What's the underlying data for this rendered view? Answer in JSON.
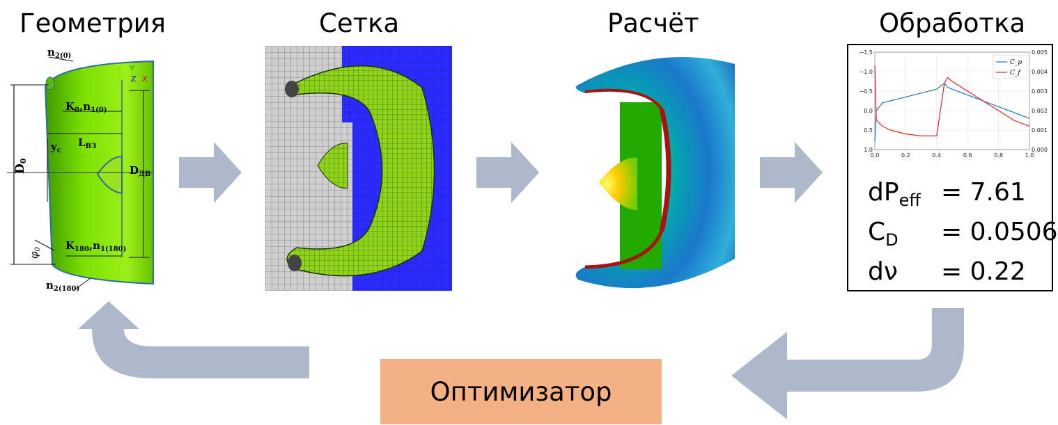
{
  "stages": [
    {
      "title": "Геометрия"
    },
    {
      "title": "Сетка"
    },
    {
      "title": "Расчёт"
    },
    {
      "title": "Обработка"
    }
  ],
  "geometry_labels": {
    "n2_0_main": "n",
    "n2_0_sub": "2(0)",
    "k0_main": "K",
    "k0_sub": "0",
    "k0_n": "n",
    "k0_nsub": "1(0)",
    "lvz_main": "L",
    "lvz_sub": "ВЗ",
    "yc_main": "y",
    "yc_sub": "c",
    "d0_main": "D",
    "d0_sub": "0",
    "ddv_main": "D",
    "ddv_sub": "ДВ",
    "phi_main": "φ",
    "phi_sub": "0",
    "k180_main": "K",
    "k180_sub": "180",
    "k180_n": "n",
    "k180_nsub": "1(180)",
    "n2_180_main": "n",
    "n2_180_sub": "2(180)",
    "axis_y": "Y",
    "axis_z": "Z",
    "axis_x": "X"
  },
  "plot": {
    "left_ticks": [
      "−1.5",
      "−1.0",
      "−0.5",
      "0.0",
      "0.5",
      "1.0"
    ],
    "right_ticks": [
      "0.005",
      "0.004",
      "0.003",
      "0.002",
      "0.001",
      "0.000"
    ],
    "x_ticks": [
      "0.0",
      "0.2",
      "0.4",
      "0.6",
      "0.8",
      "1.0"
    ],
    "legend": [
      "C_p",
      "C_f"
    ],
    "colors": {
      "cp": "#1f77b4",
      "cf": "#d62728"
    }
  },
  "chart_data": {
    "type": "line",
    "x": [
      0.0,
      0.01,
      0.05,
      0.1,
      0.2,
      0.3,
      0.4,
      0.45,
      0.47,
      0.5,
      0.6,
      0.7,
      0.8,
      0.9,
      1.0
    ],
    "series": [
      {
        "name": "C_p",
        "axis": "left",
        "values": [
          0.8,
          0.0,
          -0.2,
          -0.25,
          -0.35,
          -0.45,
          -0.55,
          -0.7,
          -0.6,
          -0.55,
          -0.4,
          -0.25,
          -0.1,
          0.05,
          0.2
        ]
      },
      {
        "name": "C_f",
        "axis": "right",
        "values": [
          0.0043,
          0.0015,
          0.0012,
          0.001,
          0.0008,
          0.0007,
          0.0007,
          0.0034,
          0.0037,
          0.0035,
          0.003,
          0.0025,
          0.002,
          0.0015,
          0.0012
        ]
      }
    ],
    "xlim": [
      0.0,
      1.0
    ],
    "ylim_left": [
      1.0,
      -1.5
    ],
    "ylim_right": [
      0.0,
      0.005
    ],
    "legend_position": "top-right"
  },
  "metrics": [
    {
      "name": "dP",
      "sub": "eff",
      "value": "= 7.61"
    },
    {
      "name": "C",
      "sub": "D",
      "value": "= 0.0506"
    },
    {
      "name": "dν",
      "sub": "",
      "value": "= 0.22"
    }
  ],
  "optimizer": {
    "label": "Оптимизатор"
  },
  "colors": {
    "arrow": "#ADB9CA",
    "optimizer_box": "#F4B183"
  }
}
